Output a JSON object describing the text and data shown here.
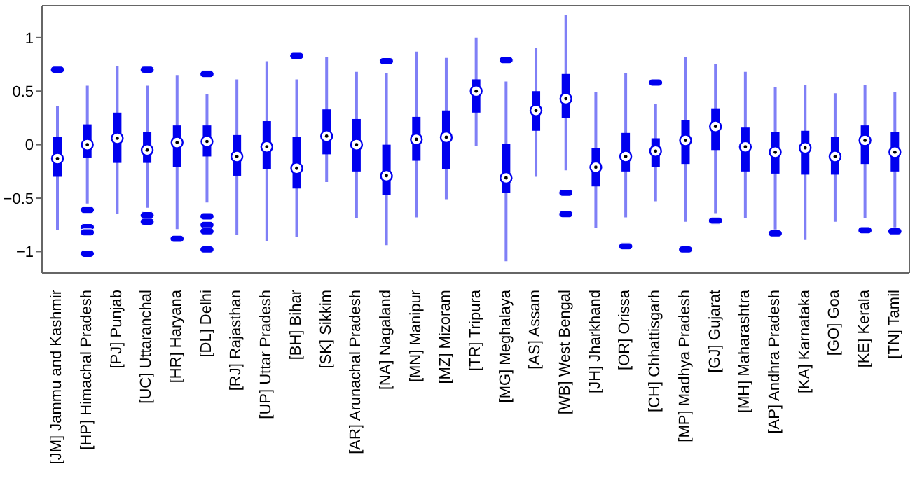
{
  "chart_data": {
    "type": "box",
    "categories": [
      "[JM] Jammu and Kashmir",
      "[HP] Himachal Pradesh",
      "[PJ] Punjab",
      "[UC] Uttaranchal",
      "[HR] Haryana",
      "[DL] Delhi",
      "[RJ] Rajasthan",
      "[UP] Uttar Pradesh",
      "[BH] Bihar",
      "[SK] Sikkim",
      "[AR] Arunachal Pradesh",
      "[NA] Nagaland",
      "[MN] Manipur",
      "[MZ] Mizoram",
      "[TR] Tripura",
      "[MG] Meghalaya",
      "[AS] Assam",
      "[WB] West Bengal",
      "[JH] Jharkhand",
      "[OR] Orissa",
      "[CH] Chhattisgarh",
      "[MP] Madhya Pradesh",
      "[GJ] Gujarat",
      "[MH] Maharashtra",
      "[AP] Andhra Pradesh",
      "[KA] Karnataka",
      "[GO] Goa",
      "[KE] Kerala",
      "[TN] Tamil"
    ],
    "ylim": [
      -1.2,
      1.3
    ],
    "yticks": [
      {
        "value": -1,
        "label": "−1"
      },
      {
        "value": -0.5,
        "label": "−0.5"
      },
      0,
      0.5,
      1
    ],
    "series": [
      {
        "color": "#0000ee",
        "boxes": [
          {
            "low": -0.8,
            "q1": -0.3,
            "median": -0.13,
            "q3": 0.07,
            "high": 0.36,
            "outliers": [
              0.7
            ]
          },
          {
            "low": -0.55,
            "q1": -0.12,
            "median": 0,
            "q3": 0.19,
            "high": 0.55,
            "outliers": [
              -0.61,
              -0.77,
              -0.82,
              -1.02
            ]
          },
          {
            "low": -0.65,
            "q1": -0.17,
            "median": 0.06,
            "q3": 0.3,
            "high": 0.73
          },
          {
            "low": -0.59,
            "q1": -0.17,
            "median": -0.05,
            "q3": 0.12,
            "high": 0.55,
            "outliers": [
              0.7,
              -0.66,
              -0.72
            ]
          },
          {
            "low": -0.79,
            "q1": -0.21,
            "median": 0.02,
            "q3": 0.18,
            "high": 0.65,
            "outliers": [
              -0.88
            ]
          },
          {
            "low": -0.54,
            "q1": -0.11,
            "median": 0.03,
            "q3": 0.18,
            "high": 0.47,
            "outliers": [
              0.66,
              -0.67,
              -0.75,
              -0.81,
              -0.98
            ]
          },
          {
            "low": -0.84,
            "q1": -0.29,
            "median": -0.11,
            "q3": 0.09,
            "high": 0.61
          },
          {
            "low": -0.9,
            "q1": -0.23,
            "median": -0.02,
            "q3": 0.22,
            "high": 0.78
          },
          {
            "low": -0.86,
            "q1": -0.41,
            "median": -0.22,
            "q3": 0.07,
            "high": 0.61,
            "outliers": [
              0.83
            ]
          },
          {
            "low": -0.35,
            "q1": -0.09,
            "median": 0.08,
            "q3": 0.33,
            "high": 0.82
          },
          {
            "low": -0.69,
            "q1": -0.25,
            "median": 0,
            "q3": 0.24,
            "high": 0.68
          },
          {
            "low": -0.94,
            "q1": -0.47,
            "median": -0.29,
            "q3": 0,
            "high": 0.67,
            "outliers": [
              0.78
            ]
          },
          {
            "low": -0.68,
            "q1": -0.15,
            "median": 0.05,
            "q3": 0.26,
            "high": 0.87
          },
          {
            "low": -0.51,
            "q1": -0.23,
            "median": 0.07,
            "q3": 0.32,
            "high": 0.81
          },
          {
            "low": -0.01,
            "q1": 0.3,
            "median": 0.5,
            "q3": 0.61,
            "high": 1.0
          },
          {
            "low": -1.09,
            "q1": -0.45,
            "median": -0.31,
            "q3": 0.01,
            "high": 0.59,
            "outliers": [
              0.79
            ]
          },
          {
            "low": -0.3,
            "q1": 0.13,
            "median": 0.32,
            "q3": 0.5,
            "high": 0.9
          },
          {
            "low": -0.24,
            "q1": 0.25,
            "median": 0.43,
            "q3": 0.66,
            "high": 1.21,
            "outliers": [
              -0.45,
              -0.65
            ]
          },
          {
            "low": -0.78,
            "q1": -0.39,
            "median": -0.21,
            "q3": -0.03,
            "high": 0.49
          },
          {
            "low": -0.68,
            "q1": -0.25,
            "median": -0.11,
            "q3": 0.11,
            "high": 0.67,
            "outliers": [
              -0.95
            ]
          },
          {
            "low": -0.53,
            "q1": -0.21,
            "median": -0.06,
            "q3": 0.06,
            "high": 0.38,
            "outliers": [
              0.58
            ]
          },
          {
            "low": -0.72,
            "q1": -0.18,
            "median": 0.04,
            "q3": 0.23,
            "high": 0.82,
            "outliers": [
              -0.98
            ]
          },
          {
            "low": -0.64,
            "q1": -0.05,
            "median": 0.17,
            "q3": 0.34,
            "high": 0.75,
            "outliers": [
              -0.71
            ]
          },
          {
            "low": -0.69,
            "q1": -0.25,
            "median": -0.02,
            "q3": 0.16,
            "high": 0.68
          },
          {
            "low": -0.8,
            "q1": -0.27,
            "median": -0.07,
            "q3": 0.12,
            "high": 0.54,
            "outliers": [
              -0.83
            ]
          },
          {
            "low": -0.89,
            "q1": -0.28,
            "median": -0.03,
            "q3": 0.13,
            "high": 0.56
          },
          {
            "low": -0.72,
            "q1": -0.28,
            "median": -0.11,
            "q3": 0.07,
            "high": 0.48
          },
          {
            "low": -0.69,
            "q1": -0.18,
            "median": 0.04,
            "q3": 0.18,
            "high": 0.56,
            "outliers": [
              -0.8
            ]
          },
          {
            "low": -0.78,
            "q1": -0.25,
            "median": -0.07,
            "q3": 0.12,
            "high": 0.49,
            "outliers": [
              -0.81
            ]
          }
        ]
      }
    ]
  }
}
